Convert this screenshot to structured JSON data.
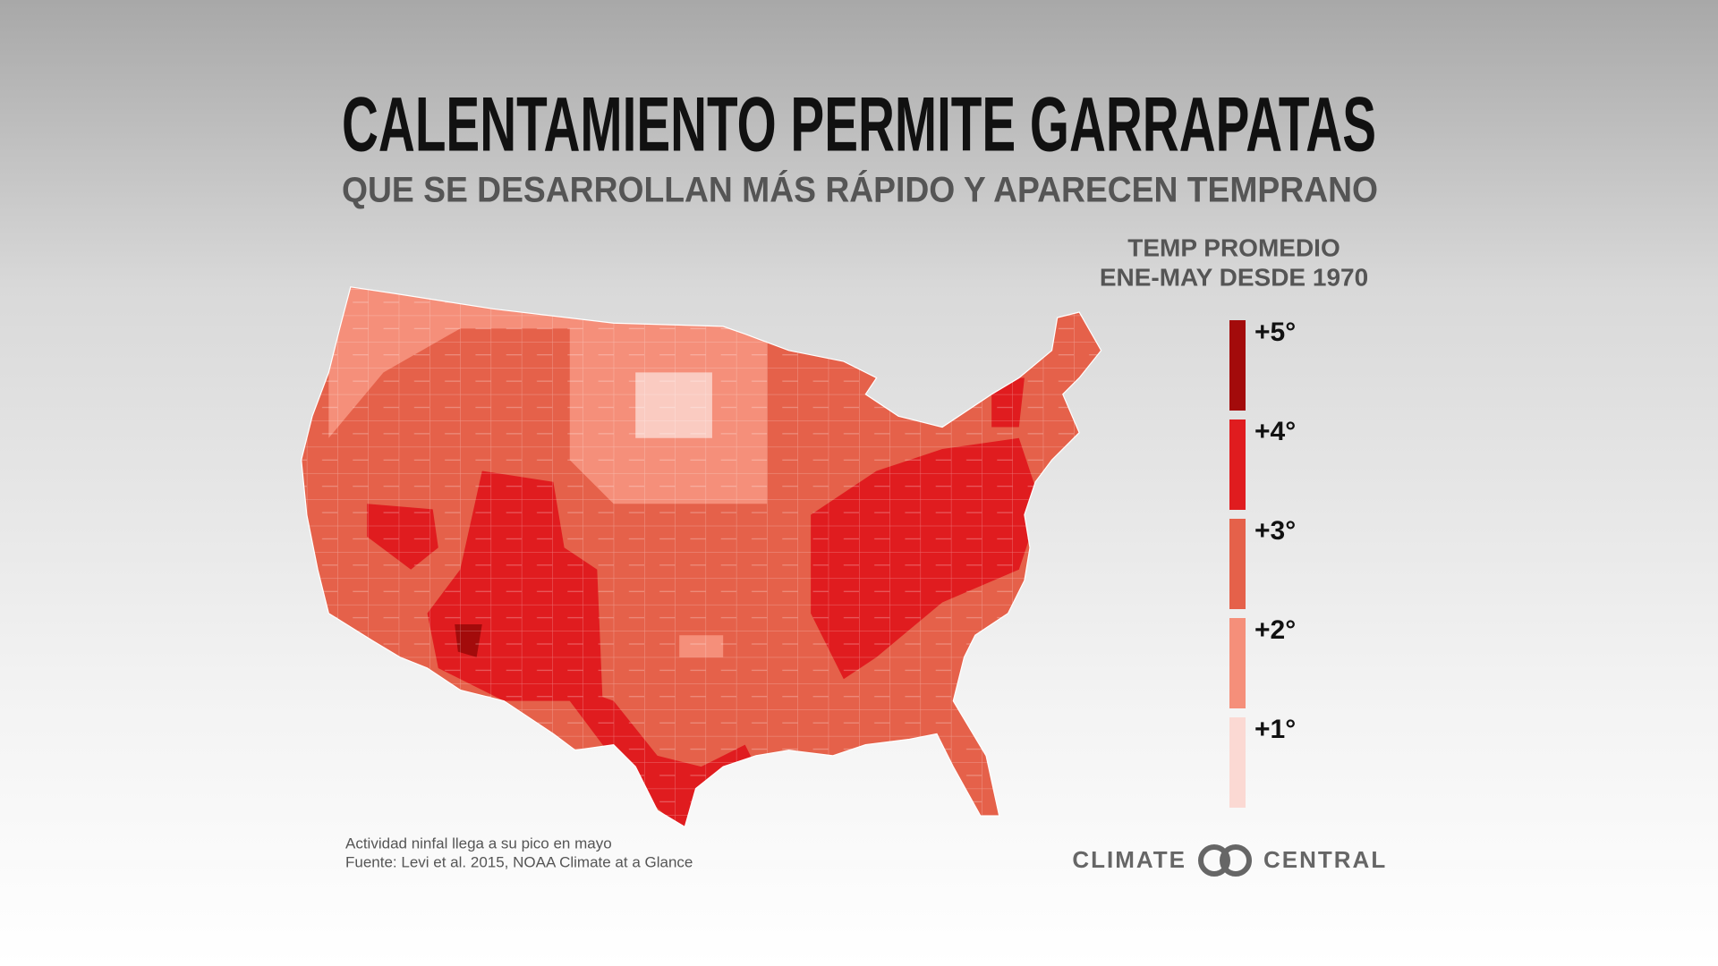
{
  "header": {
    "title": "CALENTAMIENTO PERMITE GARRAPATAS",
    "subtitle": "QUE SE DESARROLLAN MÁS RÁPIDO Y APARECEN TEMPRANO"
  },
  "legend": {
    "title": [
      "TEMP PROMEDIO",
      "ENE-MAY DESDE 1970"
    ],
    "items": [
      {
        "label": "+5°",
        "color": "#a30b0b"
      },
      {
        "label": "+4°",
        "color": "#e01c1f"
      },
      {
        "label": "+3°",
        "color": "#e5614a"
      },
      {
        "label": "+2°",
        "color": "#f58f7a"
      },
      {
        "label": "+1°",
        "color": "#fbd9d3"
      }
    ]
  },
  "notes": [
    "Actividad ninfal llega a su pico en mayo",
    "Fuente: Levi et al. 2015, NOAA Climate at a Glance"
  ],
  "brand": [
    "CLIMATE",
    "CENTRAL"
  ]
}
